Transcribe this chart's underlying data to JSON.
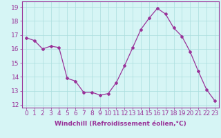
{
  "x": [
    0,
    1,
    2,
    3,
    4,
    5,
    6,
    7,
    8,
    9,
    10,
    11,
    12,
    13,
    14,
    15,
    16,
    17,
    18,
    19,
    20,
    21,
    22,
    23
  ],
  "y": [
    16.8,
    16.6,
    16.0,
    16.2,
    16.1,
    13.9,
    13.7,
    12.9,
    12.9,
    12.7,
    12.8,
    13.6,
    14.8,
    16.1,
    17.4,
    18.2,
    18.9,
    18.5,
    17.5,
    16.9,
    15.8,
    14.4,
    13.1,
    12.3
  ],
  "line_color": "#993399",
  "marker": "D",
  "marker_size": 2,
  "linewidth": 0.9,
  "background_color": "#d6f5f5",
  "grid_color": "#aadddd",
  "xlabel": "Windchill (Refroidissement éolien,°C)",
  "ylabel_ticks": [
    12,
    13,
    14,
    15,
    16,
    17,
    18,
    19
  ],
  "xlim": [
    -0.5,
    23.5
  ],
  "ylim": [
    11.8,
    19.4
  ],
  "xticks": [
    0,
    1,
    2,
    3,
    4,
    5,
    6,
    7,
    8,
    9,
    10,
    11,
    12,
    13,
    14,
    15,
    16,
    17,
    18,
    19,
    20,
    21,
    22,
    23
  ],
  "xlabel_fontsize": 6.5,
  "tick_fontsize": 6.5,
  "axis_color": "#993399",
  "tick_color": "#993399"
}
